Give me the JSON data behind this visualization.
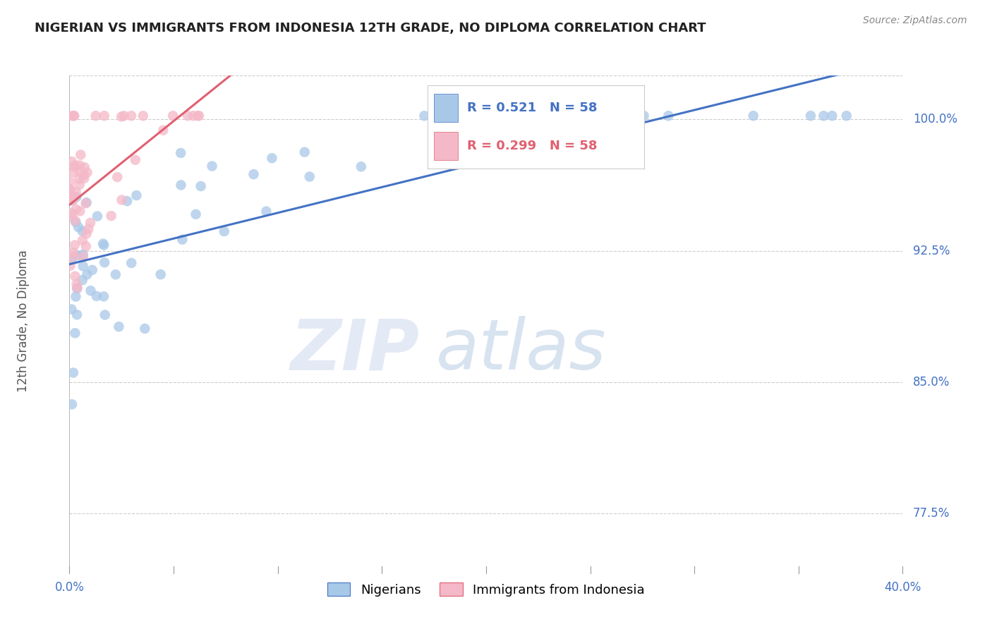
{
  "title": "NIGERIAN VS IMMIGRANTS FROM INDONESIA 12TH GRADE, NO DIPLOMA CORRELATION CHART",
  "source": "Source: ZipAtlas.com",
  "ylabel": "12th Grade, No Diploma",
  "ytick_vals": [
    0.775,
    0.85,
    0.925,
    1.0
  ],
  "ytick_labels": [
    "77.5%",
    "85.0%",
    "92.5%",
    "100.0%"
  ],
  "xmin": 0.0,
  "xmax": 0.4,
  "ymin": 0.745,
  "ymax": 1.025,
  "blue_R": 0.521,
  "pink_R": 0.299,
  "N": 58,
  "legend_blue_label": "Nigerians",
  "legend_pink_label": "Immigrants from Indonesia",
  "blue_dot_color": "#a8c8e8",
  "blue_line_color": "#4472c4",
  "pink_dot_color": "#f4b8c8",
  "pink_line_color": "#e06070",
  "axis_tick_color": "#4472c4",
  "ylabel_color": "#555555",
  "title_color": "#222222",
  "source_color": "#888888",
  "grid_color": "#cccccc",
  "watermark_zip_color": "#ccd9ee",
  "watermark_atlas_color": "#b8cce4"
}
